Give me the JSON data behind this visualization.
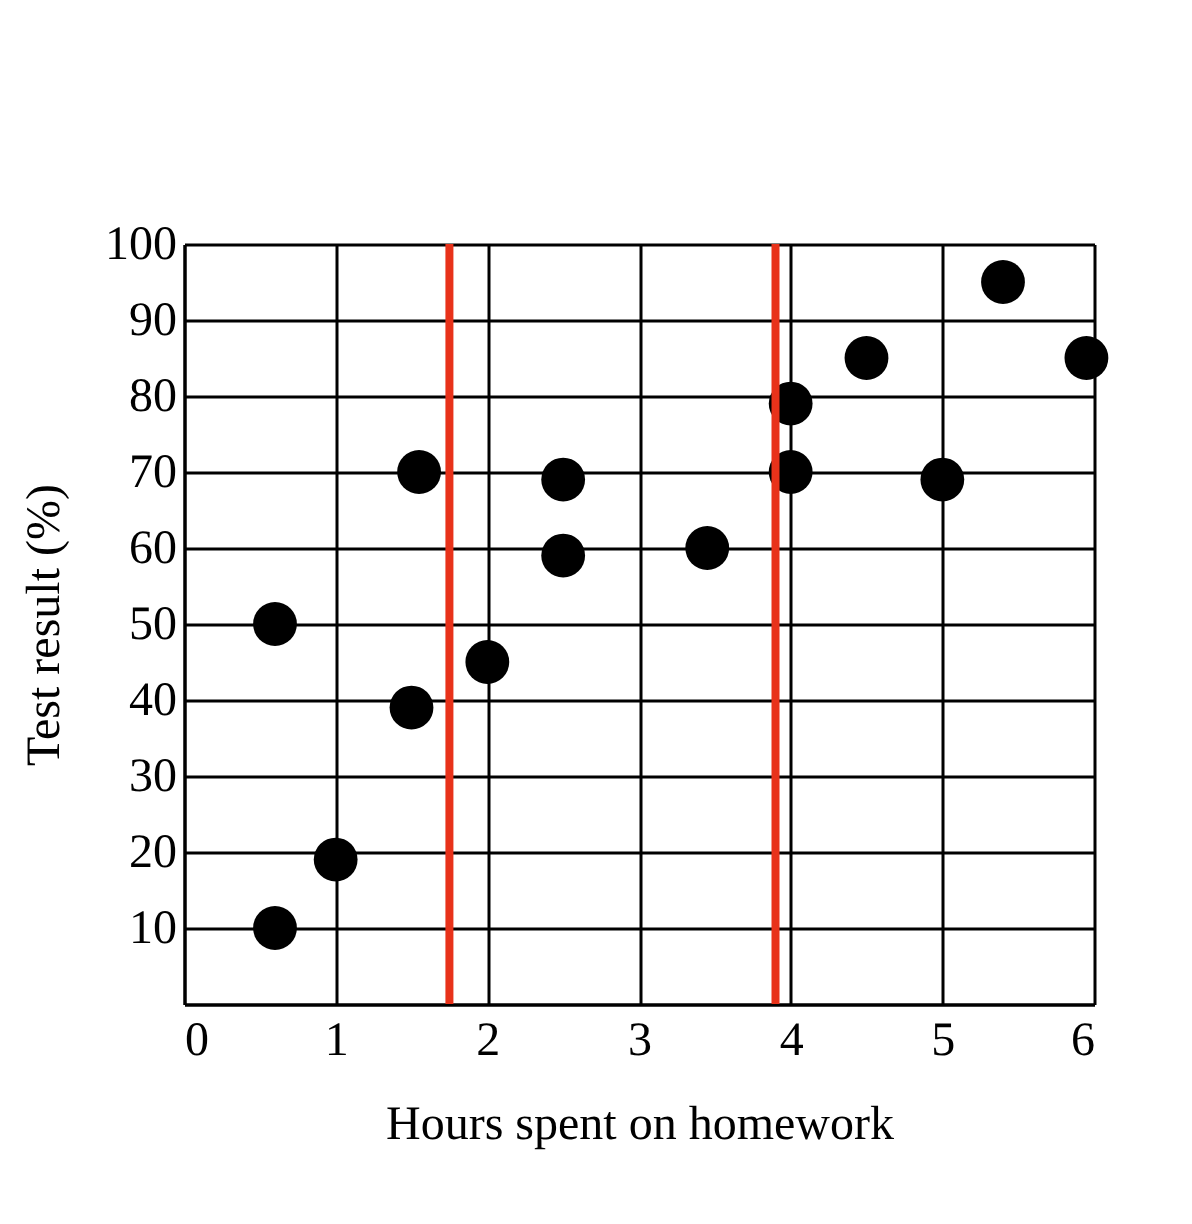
{
  "chart_data": {
    "type": "scatter",
    "xlabel": "Hours spent on homework",
    "ylabel": "Test result (%)",
    "x": [
      0.6,
      1,
      0.6,
      1.5,
      1.55,
      2,
      2.5,
      2.5,
      3.45,
      4,
      4,
      4.5,
      5,
      5.4,
      5.95
    ],
    "series": [
      {
        "color": "#000000",
        "values": [
          10,
          19,
          50,
          39,
          70,
          45,
          69,
          59,
          60,
          79,
          70,
          85,
          69,
          95,
          85
        ]
      }
    ],
    "xlim": [
      0,
      6
    ],
    "xticks": [
      0,
      1,
      2,
      3,
      4,
      5,
      6
    ],
    "ylim": [
      0,
      100
    ],
    "yticks": [
      {
        "value": 0,
        "label": null
      },
      10,
      20,
      30,
      40,
      50,
      60,
      70,
      80,
      90,
      100
    ],
    "grid": true,
    "marker": "circle",
    "ref_lines": [
      {
        "axis": "x",
        "value": 1.75,
        "color": "#e8321a"
      },
      {
        "axis": "x",
        "value": 3.9,
        "color": "#e8321a"
      }
    ]
  }
}
